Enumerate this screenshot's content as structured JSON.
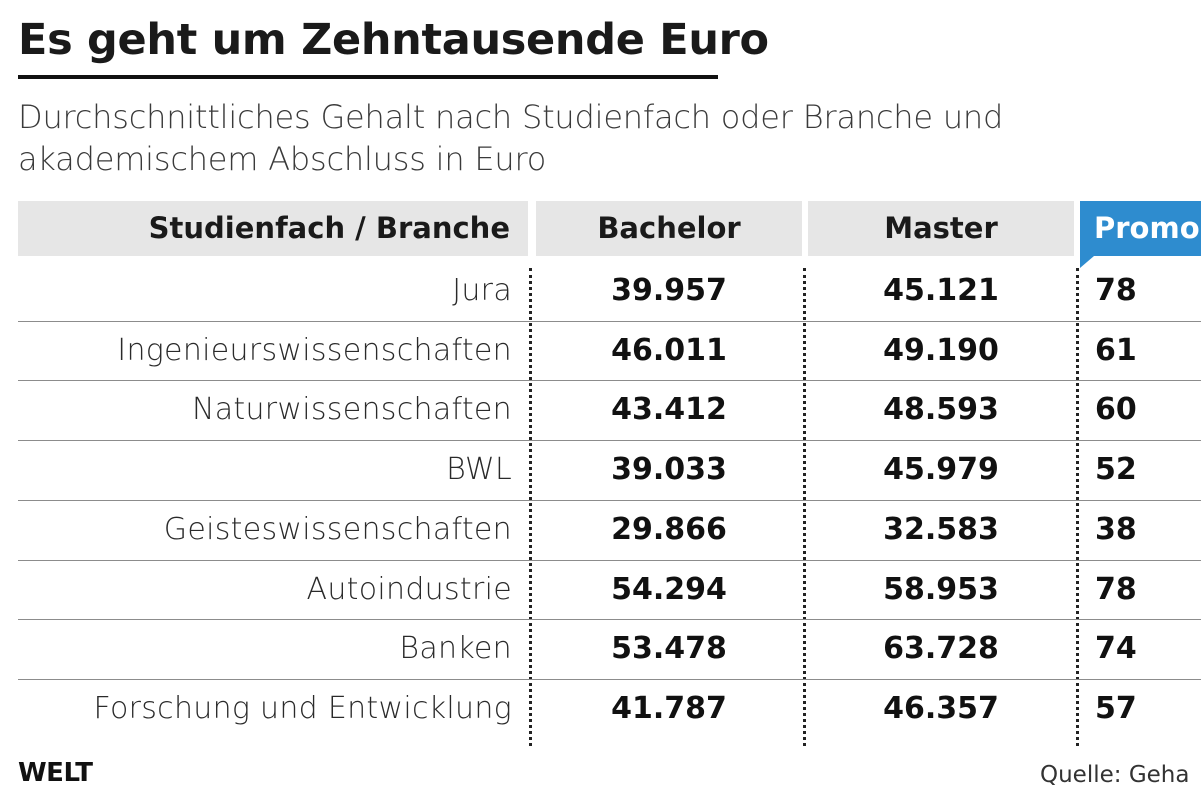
{
  "title": "Es geht um Zehntausende Euro",
  "subtitle": "Durchschnittliches Gehalt nach Studienfach oder Branche und akademischem Abschluss in Euro",
  "colors": {
    "header_bg": "#e6e6e6",
    "promo_header_bg": "#2e8ccf",
    "text": "#1a1a1a"
  },
  "chart_data": {
    "type": "table",
    "columns": [
      "Studienfach / Branche",
      "Bachelor",
      "Master",
      "Promo"
    ],
    "rows": [
      {
        "label": "Jura",
        "bachelor": "39.957",
        "master": "45.121",
        "promo": "78"
      },
      {
        "label": "Ingenieurswissenschaften",
        "bachelor": "46.011",
        "master": "49.190",
        "promo": "61"
      },
      {
        "label": "Naturwissenschaften",
        "bachelor": "43.412",
        "master": "48.593",
        "promo": "60"
      },
      {
        "label": "BWL",
        "bachelor": "39.033",
        "master": "45.979",
        "promo": "52"
      },
      {
        "label": "Geisteswissenschaften",
        "bachelor": "29.866",
        "master": "32.583",
        "promo": "38"
      },
      {
        "label": "Autoindustrie",
        "bachelor": "54.294",
        "master": "58.953",
        "promo": "78"
      },
      {
        "label": "Banken",
        "bachelor": "53.478",
        "master": "63.728",
        "promo": "74"
      },
      {
        "label": "Forschung und Entwicklung",
        "bachelor": "41.787",
        "master": "46.357",
        "promo": "57"
      }
    ]
  },
  "footer": {
    "logo": "WELT",
    "source": "Quelle: Geha"
  }
}
